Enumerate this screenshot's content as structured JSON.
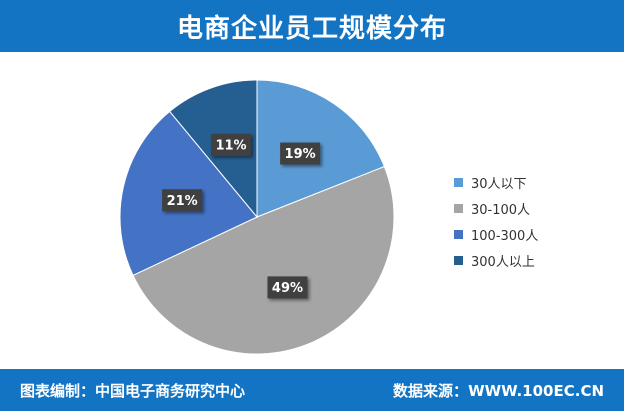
{
  "header": {
    "title": "电商企业员工规模分布"
  },
  "footer": {
    "compiler_label": "图表编制：",
    "compiler_value": "中国电子商务研究中心",
    "source_label": "数据来源：",
    "source_value": "WWW.100EC.CN"
  },
  "colors": {
    "brand": "#1474c4",
    "series": [
      "#5b9bd5",
      "#a5a5a5",
      "#4472c4",
      "#255e91"
    ]
  },
  "chart_data": {
    "type": "pie",
    "title": "电商企业员工规模分布",
    "categories": [
      "30人以下",
      "30-100人",
      "100-300人",
      "300人以上"
    ],
    "values": [
      19,
      49,
      21,
      11
    ],
    "labels": [
      "19%",
      "49%",
      "21%",
      "11%"
    ],
    "legend_position": "right"
  }
}
